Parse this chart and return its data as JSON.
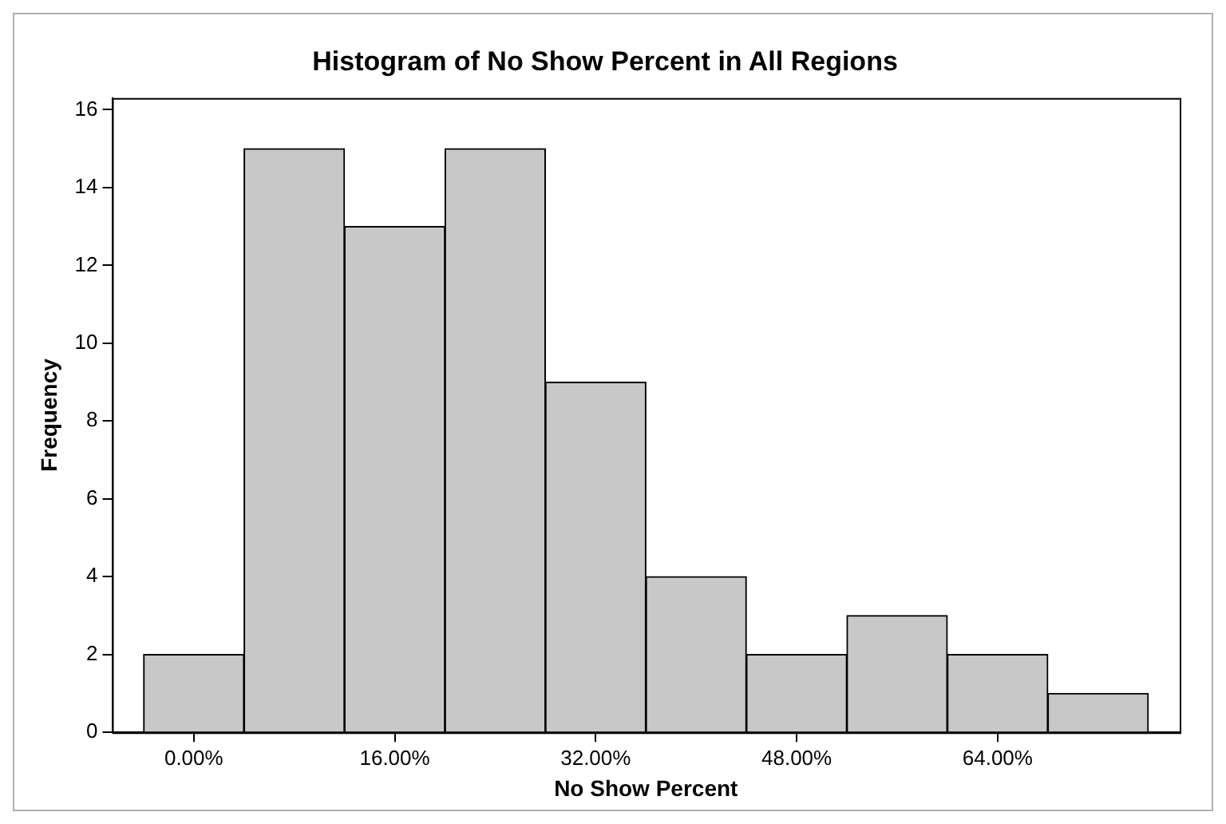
{
  "chart_data": {
    "type": "histogram",
    "title": "Histogram of No Show Percent in All Regions",
    "xlabel": "No Show Percent",
    "ylabel": "Frequency",
    "bins": [
      -4,
      4,
      12,
      20,
      28,
      36,
      44,
      52,
      60,
      68,
      76
    ],
    "values": [
      2,
      15,
      13,
      15,
      9,
      4,
      2,
      3,
      2,
      1
    ],
    "color": "#c8c8c8",
    "xlim": [
      -6.5,
      78.5
    ],
    "xticks": [
      {
        "value": 0,
        "label": "0.00%"
      },
      {
        "value": 16,
        "label": "16.00%"
      },
      {
        "value": 32,
        "label": "32.00%"
      },
      {
        "value": 48,
        "label": "48.00%"
      },
      {
        "value": 64,
        "label": "64.00%"
      }
    ],
    "ylim": [
      0,
      16.3
    ],
    "yticks": [
      0,
      2,
      4,
      6,
      8,
      10,
      12,
      14,
      16
    ],
    "grid": false,
    "legend": false
  }
}
